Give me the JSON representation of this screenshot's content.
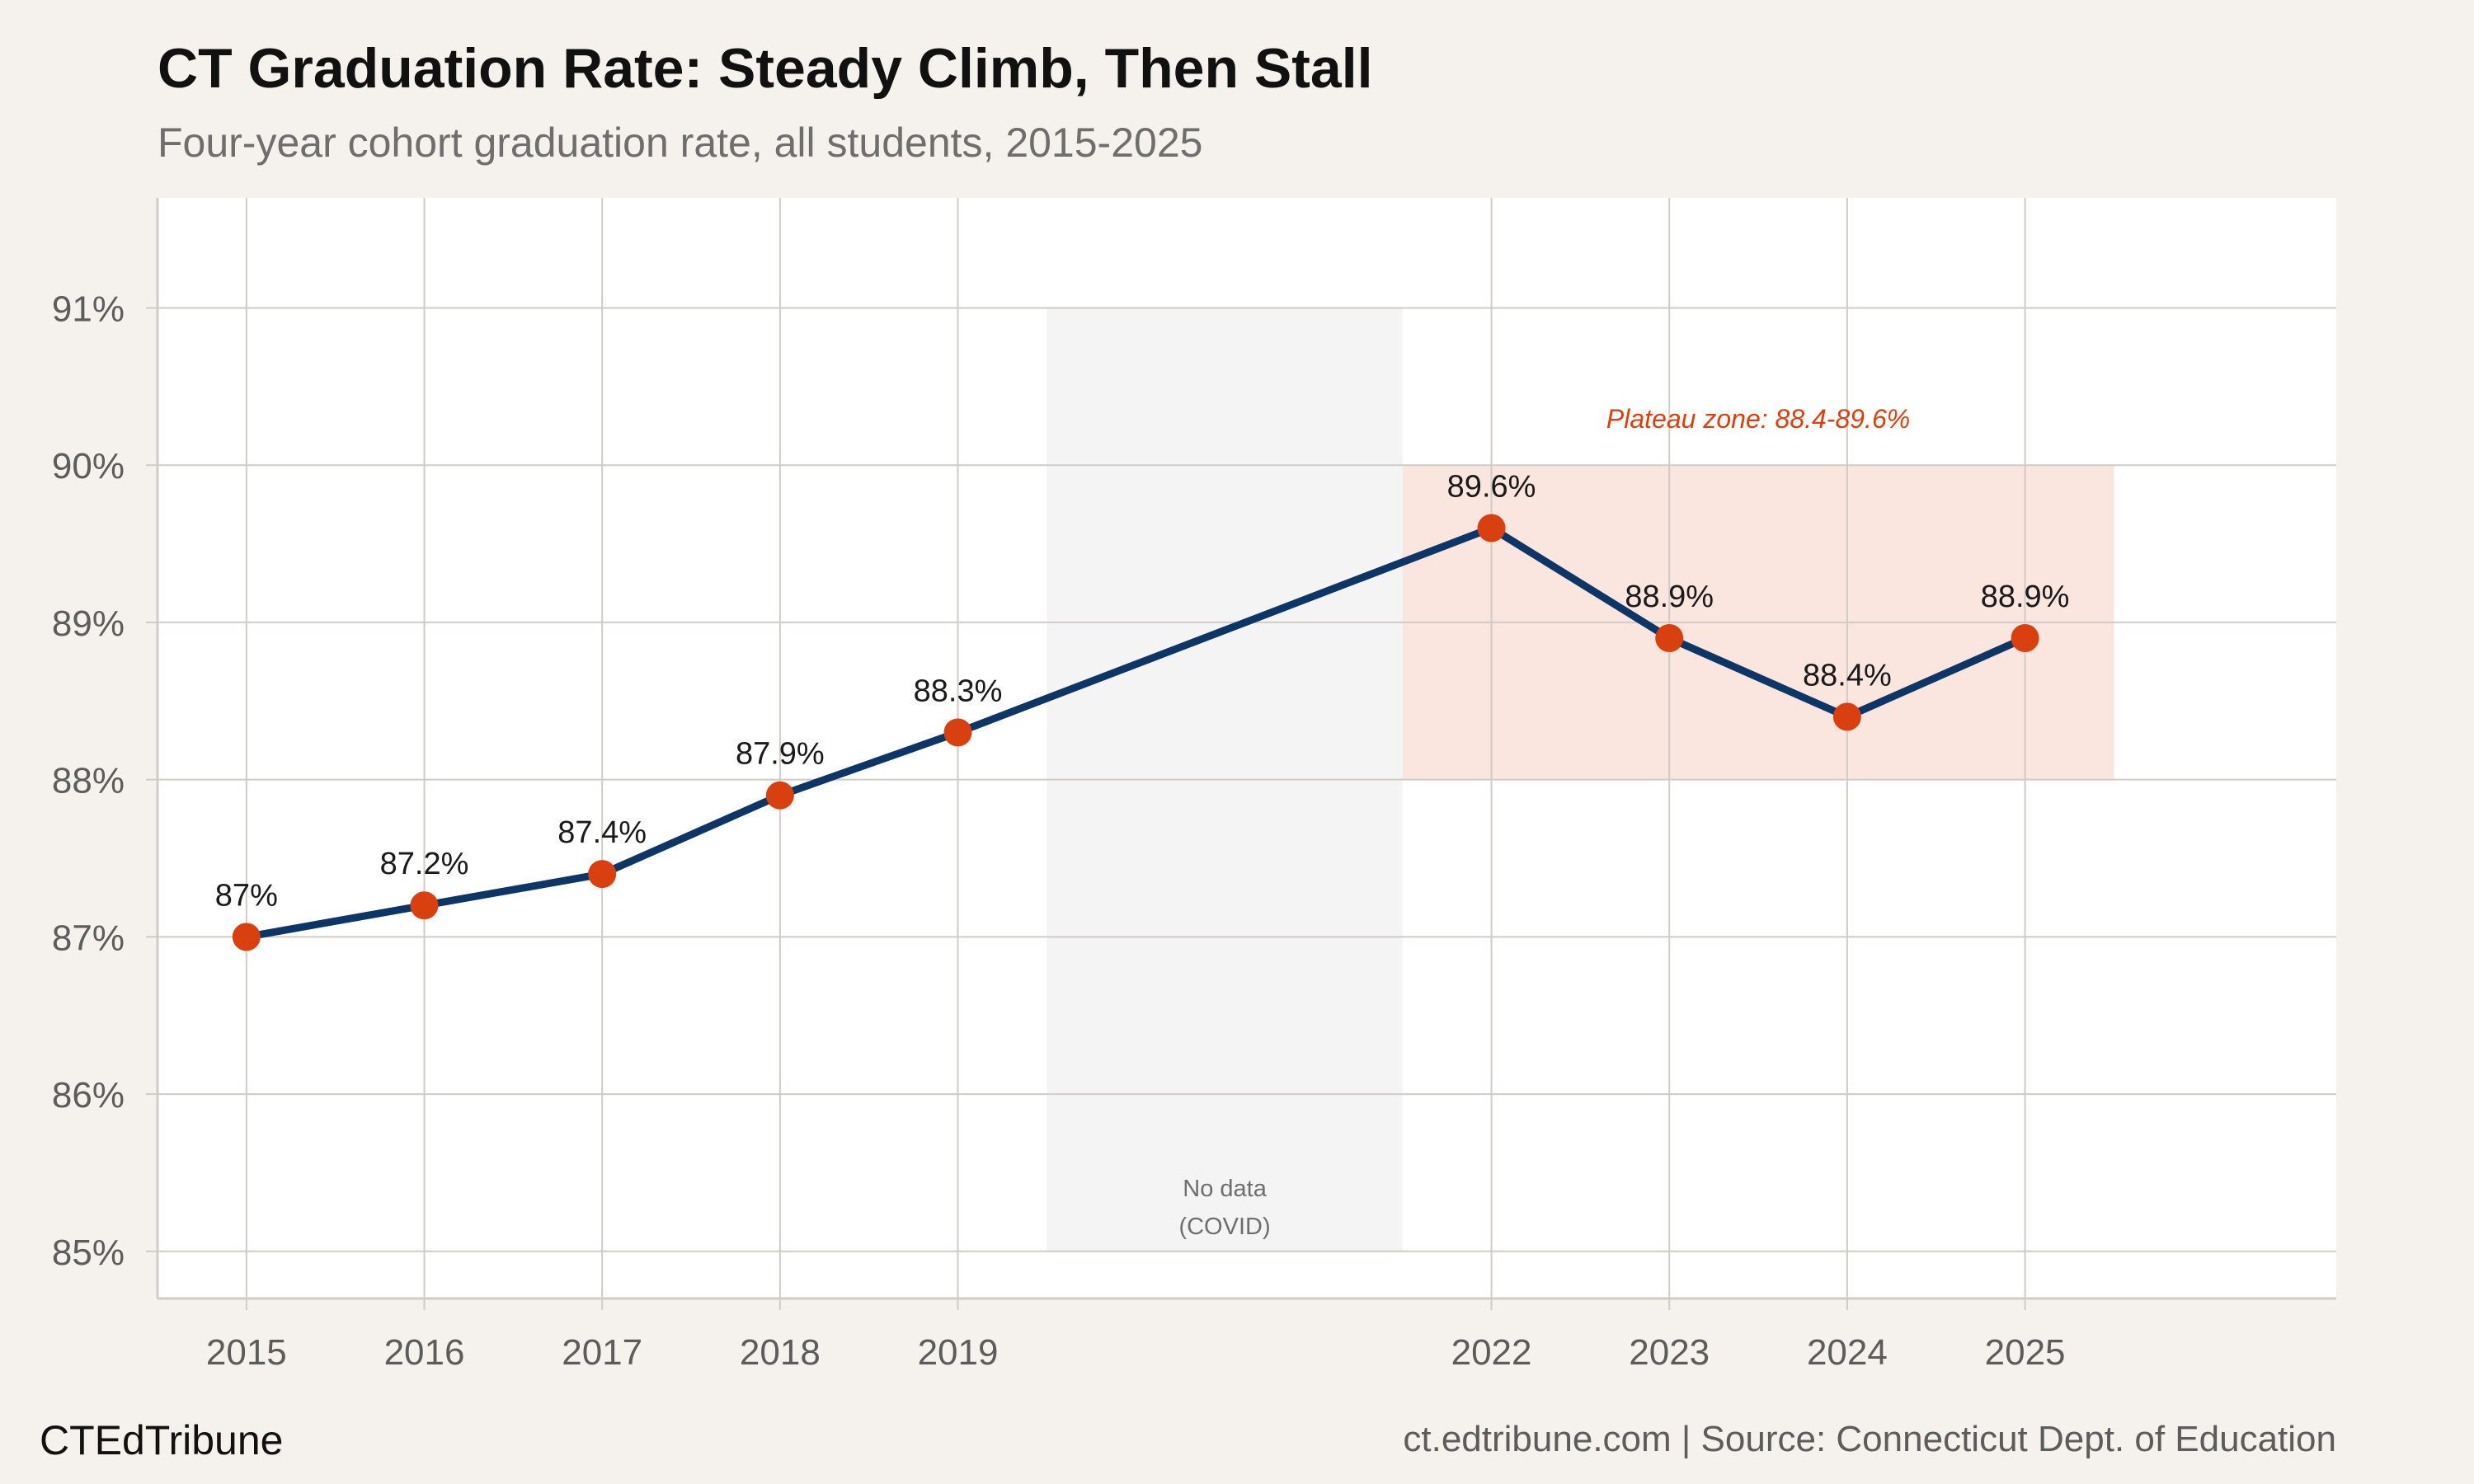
{
  "chart_data": {
    "type": "line",
    "title": "CT Graduation Rate: Steady Climb, Then Stall",
    "subtitle": "Four-year cohort graduation rate, all students, 2015-2025",
    "x": [
      2015,
      2016,
      2017,
      2018,
      2019,
      2022,
      2023,
      2024,
      2025
    ],
    "x_tick_labels": [
      "2015",
      "2016",
      "2017",
      "2018",
      "2019",
      "2022",
      "2023",
      "2024",
      "2025"
    ],
    "values": [
      87.0,
      87.2,
      87.4,
      87.9,
      88.3,
      89.6,
      88.9,
      88.4,
      88.9
    ],
    "data_labels": [
      "87%",
      "87.2%",
      "87.4%",
      "87.9%",
      "88.3%",
      "89.6%",
      "88.9%",
      "88.4%",
      "88.9%"
    ],
    "xlim": [
      2014.5,
      2026.75
    ],
    "ylim": [
      84.7,
      91.7
    ],
    "y_ticks": [
      85,
      86,
      87,
      88,
      89,
      90,
      91
    ],
    "y_tick_labels": [
      "85%",
      "86%",
      "87%",
      "88%",
      "89%",
      "90%",
      "91%"
    ],
    "grid": true,
    "gap_region": {
      "x_start": 2019.5,
      "x_end": 2021.5,
      "y_start": 85,
      "y_end": 91,
      "label_line1": "No data",
      "label_line2": "(COVID)"
    },
    "plateau_region": {
      "x_start": 2021.5,
      "x_end": 2025.5,
      "y_start": 88,
      "y_end": 90,
      "label": "Plateau zone: 88.4-89.6%"
    },
    "colors": {
      "line": "#0d3566",
      "marker": "#d9400f",
      "plateau_fill": "#fae5df",
      "plateau_text": "#d9400f",
      "gap_fill": "#f4f4f4",
      "grid": "#cfcbc6",
      "panel": "#ffffff",
      "background": "#f5f2ee"
    }
  },
  "footer": {
    "brand": "CTEdTribune",
    "source": "ct.edtribune.com | Source: Connecticut Dept. of Education"
  }
}
